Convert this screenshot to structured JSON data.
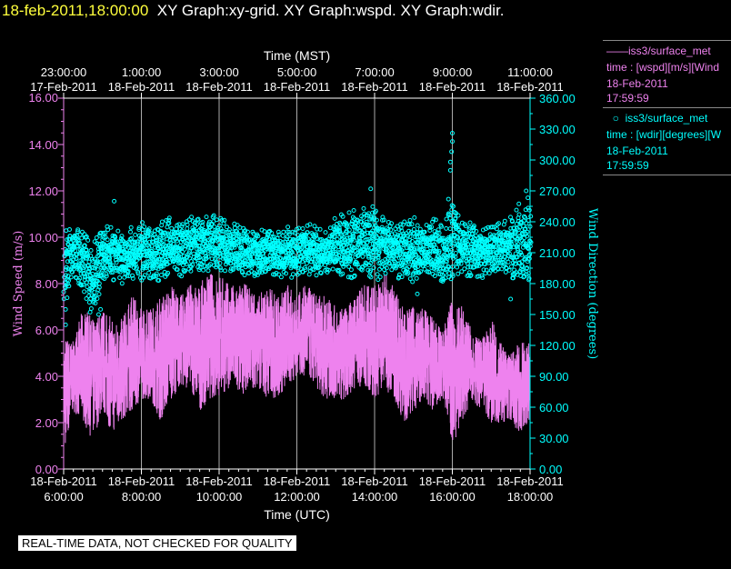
{
  "header": {
    "timestamp": "18-feb-2011,18:00:00",
    "graphs": "XY Graph:xy-grid.  XY Graph:wspd.  XY Graph:wdir."
  },
  "legend": {
    "wspd": {
      "name": "iss3/surface_met",
      "field": "time : [wspd][m/s][Wind",
      "date": "18-Feb-2011",
      "time": "17:59:59"
    },
    "wdir": {
      "name": "iss3/surface_met",
      "field": "time : [wdir][degrees][W",
      "date": "18-Feb-2011",
      "time": "17:59:59"
    }
  },
  "disclaimer": "REAL-TIME DATA, NOT CHECKED FOR QUALITY",
  "colors": {
    "wspd": "#ee82ee",
    "wdir": "#00ffff",
    "grid": "#aaaaaa",
    "background": "#000000"
  },
  "chart_data": {
    "type": "line",
    "top_axis": {
      "title": "Time (MST)",
      "ticks": [
        {
          "t": 0,
          "time": "23:00:00",
          "date": "17-Feb-2011"
        },
        {
          "t": 2,
          "time": "1:00:00",
          "date": "18-Feb-2011"
        },
        {
          "t": 4,
          "time": "3:00:00",
          "date": "18-Feb-2011"
        },
        {
          "t": 6,
          "time": "5:00:00",
          "date": "18-Feb-2011"
        },
        {
          "t": 8,
          "time": "7:00:00",
          "date": "18-Feb-2011"
        },
        {
          "t": 10,
          "time": "9:00:00",
          "date": "18-Feb-2011"
        },
        {
          "t": 12,
          "time": "11:00:00",
          "date": "18-Feb-2011"
        }
      ]
    },
    "bottom_axis": {
      "title": "Time (UTC)",
      "range": [
        "18-Feb-2011 6:00:00",
        "18-Feb-2011 18:00:00"
      ],
      "ticks": [
        {
          "t": 0,
          "time": "6:00:00",
          "date": "18-Feb-2011"
        },
        {
          "t": 2,
          "time": "8:00:00",
          "date": "18-Feb-2011"
        },
        {
          "t": 4,
          "time": "10:00:00",
          "date": "18-Feb-2011"
        },
        {
          "t": 6,
          "time": "12:00:00",
          "date": "18-Feb-2011"
        },
        {
          "t": 8,
          "time": "14:00:00",
          "date": "18-Feb-2011"
        },
        {
          "t": 10,
          "time": "16:00:00",
          "date": "18-Feb-2011"
        },
        {
          "t": 12,
          "time": "18:00:00",
          "date": "18-Feb-2011"
        }
      ]
    },
    "left_axis": {
      "title": "Wind Speed (m/s)",
      "ylim": [
        0,
        16
      ],
      "ticks": [
        "0.00",
        "2.00",
        "4.00",
        "6.00",
        "8.00",
        "10.00",
        "12.00",
        "14.00",
        "16.00"
      ]
    },
    "right_axis": {
      "title": "Wind Direction (degrees)",
      "ylim": [
        0,
        360
      ],
      "ticks": [
        "0.00",
        "30.00",
        "60.00",
        "90.00",
        "120.00",
        "150.00",
        "180.00",
        "210.00",
        "240.00",
        "270.00",
        "300.00",
        "330.00",
        "360.00"
      ]
    },
    "grid": true,
    "series": [
      {
        "name": "iss3/surface_met",
        "field": "wspd",
        "axis": "left",
        "style": "line",
        "x": [
          0,
          0.25,
          0.5,
          0.75,
          1,
          1.25,
          1.5,
          1.75,
          2,
          2.25,
          2.5,
          2.75,
          3,
          3.25,
          3.5,
          3.75,
          4,
          4.25,
          4.5,
          4.75,
          5,
          5.25,
          5.5,
          5.75,
          6,
          6.25,
          6.5,
          6.75,
          7,
          7.25,
          7.5,
          7.75,
          8,
          8.25,
          8.5,
          8.75,
          9,
          9.25,
          9.5,
          9.75,
          10,
          10.25,
          10.5,
          10.75,
          11,
          11.25,
          11.5,
          11.75,
          12
        ],
        "min": [
          0.5,
          2.5,
          2.0,
          1.2,
          2.5,
          1.5,
          2.0,
          2.5,
          3.0,
          3.0,
          2.0,
          3.0,
          3.5,
          3.5,
          2.5,
          3.0,
          3.0,
          3.5,
          3.0,
          3.5,
          3.5,
          3.0,
          3.0,
          3.5,
          4.0,
          4.0,
          3.5,
          3.0,
          3.0,
          3.0,
          3.5,
          3.5,
          3.0,
          3.5,
          3.0,
          2.0,
          2.5,
          3.0,
          2.5,
          3.0,
          1.0,
          2.0,
          3.0,
          2.5,
          2.0,
          2.0,
          2.0,
          1.5,
          2.0
        ],
        "max": [
          6.0,
          5.5,
          7.0,
          6.5,
          7.0,
          6.5,
          6.5,
          7.5,
          7.0,
          7.0,
          7.5,
          8.0,
          7.5,
          8.0,
          8.0,
          8.5,
          8.5,
          8.0,
          8.0,
          8.0,
          7.5,
          8.0,
          7.5,
          8.0,
          7.5,
          8.0,
          7.5,
          7.5,
          7.0,
          7.0,
          7.5,
          8.0,
          8.0,
          8.5,
          8.0,
          7.0,
          7.0,
          7.0,
          6.5,
          6.0,
          7.5,
          7.0,
          6.0,
          5.5,
          6.5,
          5.5,
          5.0,
          5.5,
          5.5
        ]
      },
      {
        "name": "iss3/surface_met",
        "field": "wdir",
        "axis": "right",
        "style": "markers",
        "x": [
          0,
          0.25,
          0.5,
          0.75,
          1,
          1.25,
          1.5,
          1.75,
          2,
          2.25,
          2.5,
          2.75,
          3,
          3.25,
          3.5,
          3.75,
          4,
          4.25,
          4.5,
          4.75,
          5,
          5.25,
          5.5,
          5.75,
          6,
          6.25,
          6.5,
          6.75,
          7,
          7.25,
          7.5,
          7.75,
          8,
          8.25,
          8.5,
          8.75,
          9,
          9.25,
          9.5,
          9.75,
          10,
          10.25,
          10.5,
          10.75,
          11,
          11.25,
          11.5,
          11.75,
          12
        ],
        "min": [
          150,
          185,
          175,
          140,
          185,
          180,
          180,
          185,
          180,
          185,
          180,
          190,
          185,
          190,
          185,
          190,
          190,
          190,
          185,
          190,
          185,
          190,
          185,
          185,
          185,
          190,
          185,
          190,
          190,
          185,
          185,
          190,
          180,
          190,
          185,
          185,
          180,
          190,
          185,
          180,
          185,
          190,
          185,
          185,
          190,
          190,
          185,
          180,
          175
        ],
        "max": [
          240,
          235,
          230,
          220,
          235,
          240,
          230,
          235,
          240,
          235,
          240,
          245,
          240,
          245,
          245,
          248,
          245,
          240,
          240,
          235,
          230,
          235,
          230,
          235,
          235,
          240,
          235,
          230,
          245,
          250,
          255,
          265,
          255,
          245,
          240,
          240,
          245,
          240,
          245,
          235,
          260,
          245,
          240,
          240,
          235,
          240,
          245,
          260,
          265
        ],
        "outliers": [
          {
            "x": 0.05,
            "y": 140
          },
          {
            "x": 0.05,
            "y": 155
          },
          {
            "x": 0.9,
            "y": 150
          },
          {
            "x": 0.95,
            "y": 155
          },
          {
            "x": 1.3,
            "y": 260
          },
          {
            "x": 5.1,
            "y": 232
          },
          {
            "x": 7.9,
            "y": 272
          },
          {
            "x": 9.1,
            "y": 170
          },
          {
            "x": 9.95,
            "y": 290
          },
          {
            "x": 9.95,
            "y": 298
          },
          {
            "x": 9.98,
            "y": 308
          },
          {
            "x": 10.0,
            "y": 318
          },
          {
            "x": 10.0,
            "y": 326
          },
          {
            "x": 9.9,
            "y": 262
          },
          {
            "x": 11.5,
            "y": 165
          },
          {
            "x": 11.9,
            "y": 270
          }
        ]
      }
    ]
  }
}
